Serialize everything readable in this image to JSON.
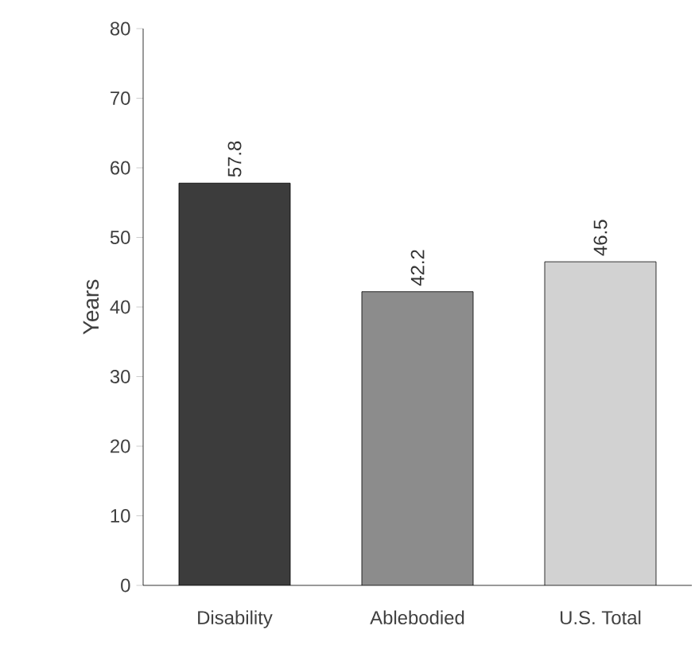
{
  "chart_data": {
    "type": "bar",
    "ylabel": "Years",
    "categories": [
      "Disability",
      "Ablebodied",
      "U.S. Total"
    ],
    "values": [
      57.8,
      42.2,
      46.5
    ],
    "colors": [
      "#3c3c3c",
      "#8c8c8c",
      "#d2d2d2"
    ],
    "ylim": [
      0,
      80
    ],
    "yticks": [
      0,
      10,
      20,
      30,
      40,
      50,
      60,
      70,
      80
    ],
    "data_labels": true,
    "grid": false
  }
}
